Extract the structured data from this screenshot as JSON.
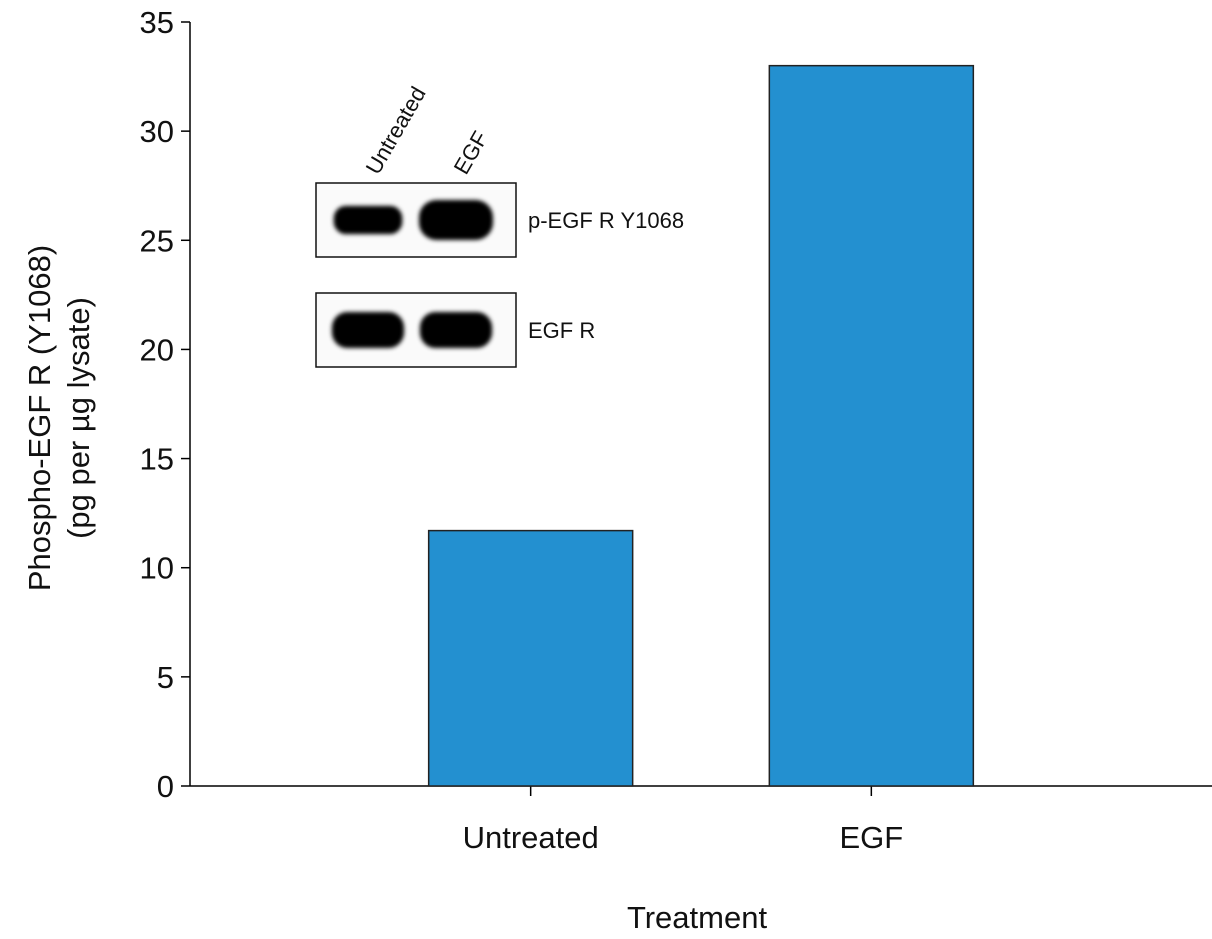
{
  "chart_data": {
    "type": "bar",
    "categories": [
      "Untreated",
      "EGF"
    ],
    "values": [
      11.7,
      33.0
    ],
    "xlabel": "Treatment",
    "ylabel_line1": "Phospho-EGF R (Y1068)",
    "ylabel_line2": "(pg per µg lysate)",
    "ylim": [
      0,
      35
    ],
    "yticks": [
      0,
      5,
      10,
      15,
      20,
      25,
      30,
      35
    ],
    "bar_color": "#2390d0",
    "grid": false,
    "inset_blot": {
      "lane_labels": [
        "Untreated",
        "EGF"
      ],
      "blots": [
        {
          "label": "p-EGF R Y1068",
          "band_intensity": [
            0.55,
            1.0
          ]
        },
        {
          "label": "EGF R",
          "band_intensity": [
            0.85,
            0.85
          ]
        }
      ]
    }
  }
}
